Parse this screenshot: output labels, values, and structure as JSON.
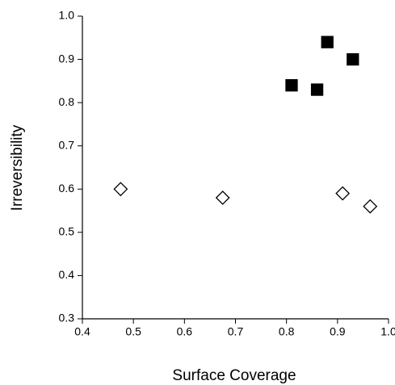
{
  "chart_data": {
    "type": "scatter",
    "x_label": "Surface Coverage",
    "y_label": "Irreversibility",
    "xlim": [
      0.4,
      1
    ],
    "xticks": [
      0.4,
      0.5,
      0.6,
      0.7,
      0.8,
      0.9,
      {
        "value": 1,
        "label": "1.0"
      }
    ],
    "ylim": [
      0.3,
      1
    ],
    "yticks": [
      0.3,
      0.4,
      0.5,
      0.6,
      0.7,
      0.8,
      0.9,
      {
        "value": 1,
        "label": "1.0"
      }
    ],
    "series": [
      {
        "color": "#000000",
        "marker": "square",
        "filled": true,
        "x": [
          0.81,
          0.88,
          0.86,
          0.93
        ],
        "values": [
          0.84,
          0.94,
          0.83,
          0.9
        ]
      },
      {
        "color": "#000000",
        "marker": "diamond",
        "filled": false,
        "x": [
          0.475,
          0.675,
          0.91,
          0.964
        ],
        "values": [
          0.6,
          0.58,
          0.59,
          0.56
        ]
      }
    ]
  }
}
